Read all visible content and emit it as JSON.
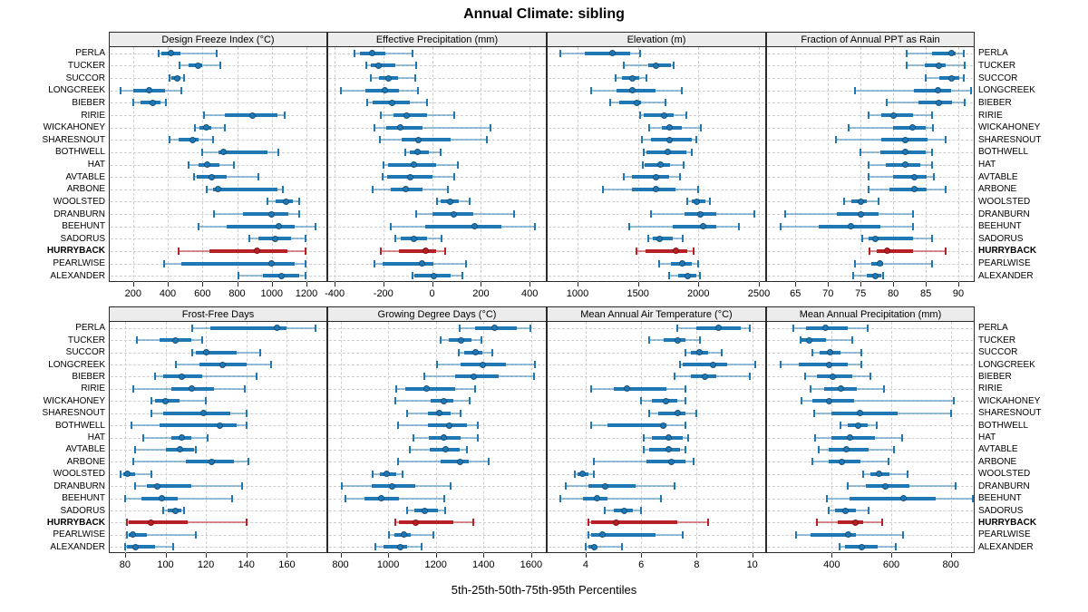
{
  "title": "Annual Climate: sibling",
  "axis_label": "5th-25th-50th-75th-95th Percentiles",
  "highlight_site": "HURRYBACK",
  "colors": {
    "series": "#1f77b4",
    "series_faint": "rgba(31,119,180,0.45)",
    "highlight": "#b82025",
    "highlight_faint": "rgba(184,32,37,0.5)",
    "strip_bg": "#ececec",
    "grid": "#cfcfcf",
    "border": "#2a2a2a"
  },
  "sites": [
    "PERLA",
    "TUCKER",
    "SUCCOR",
    "LONGCREEK",
    "BIEBER",
    "RIRIE",
    "WICKAHONEY",
    "SHARESNOUT",
    "BOTHWELL",
    "HAT",
    "AVTABLE",
    "ARBONE",
    "WOOLSTED",
    "DRANBURN",
    "BEEHUNT",
    "SADORUS",
    "HURRYBACK",
    "PEARLWISE",
    "ALEXANDER"
  ],
  "chart_data": {
    "type": "dotplot-interval",
    "note": "values per site are [5th,25th,50th,75th,95th] percentiles",
    "percentiles": [
      5,
      25,
      50,
      75,
      95
    ],
    "panels": [
      {
        "title": "Design Freeze Index (°C)",
        "grid_row": 1,
        "xlim": [
          60,
          1320
        ],
        "ticks": [
          200,
          400,
          600,
          800,
          1000,
          1200
        ],
        "values": [
          [
            345,
            365,
            420,
            475,
            680
          ],
          [
            465,
            520,
            575,
            600,
            705
          ],
          [
            410,
            420,
            455,
            475,
            495
          ],
          [
            130,
            200,
            290,
            385,
            480
          ],
          [
            200,
            245,
            315,
            360,
            390
          ],
          [
            610,
            730,
            890,
            1030,
            1075
          ],
          [
            555,
            585,
            620,
            650,
            730
          ],
          [
            410,
            460,
            545,
            575,
            660
          ],
          [
            600,
            690,
            720,
            975,
            1040
          ],
          [
            520,
            575,
            625,
            700,
            780
          ],
          [
            550,
            565,
            655,
            740,
            925
          ],
          [
            625,
            660,
            690,
            1030,
            1065
          ],
          [
            975,
            1020,
            1080,
            1120,
            1160
          ],
          [
            665,
            835,
            1000,
            1095,
            1160
          ],
          [
            575,
            740,
            1040,
            1130,
            1250
          ],
          [
            870,
            925,
            1020,
            1110,
            1195
          ],
          [
            460,
            640,
            915,
            1090,
            1195
          ],
          [
            380,
            480,
            1000,
            1130,
            1195
          ],
          [
            805,
            950,
            1055,
            1160,
            1195
          ]
        ]
      },
      {
        "title": "Effective Precipitation (mm)",
        "grid_row": 1,
        "xlim": [
          -430,
          470
        ],
        "ticks": [
          -400,
          -200,
          0,
          200,
          400
        ],
        "values": [
          [
            -320,
            -295,
            -245,
            -190,
            -80
          ],
          [
            -270,
            -250,
            -220,
            -150,
            -65
          ],
          [
            -250,
            -220,
            -180,
            -140,
            -70
          ],
          [
            -375,
            -275,
            -195,
            -135,
            -60
          ],
          [
            -265,
            -245,
            -165,
            -90,
            -20
          ],
          [
            -210,
            -160,
            -105,
            -20,
            90
          ],
          [
            -235,
            -190,
            -130,
            -40,
            240
          ],
          [
            -215,
            -125,
            -55,
            75,
            225
          ],
          [
            -110,
            -90,
            -60,
            -15,
            35
          ],
          [
            -200,
            -180,
            -75,
            15,
            105
          ],
          [
            -205,
            -185,
            -90,
            0,
            90
          ],
          [
            -245,
            -170,
            -110,
            -40,
            65
          ],
          [
            20,
            35,
            75,
            110,
            155
          ],
          [
            -65,
            0,
            90,
            170,
            335
          ],
          [
            -170,
            -30,
            175,
            285,
            420
          ],
          [
            -150,
            -130,
            -75,
            -20,
            40
          ],
          [
            -210,
            -135,
            -25,
            15,
            55
          ],
          [
            -235,
            -205,
            -40,
            5,
            140
          ],
          [
            -80,
            -75,
            5,
            75,
            125
          ]
        ]
      },
      {
        "title": "Elevation (m)",
        "grid_row": 1,
        "xlim": [
          745,
          2560
        ],
        "ticks": [
          1000,
          1500,
          2000,
          2500
        ],
        "values": [
          [
            860,
            1060,
            1290,
            1435,
            1520
          ],
          [
            1385,
            1585,
            1645,
            1775,
            1795
          ],
          [
            1315,
            1370,
            1450,
            1510,
            1570
          ],
          [
            1115,
            1325,
            1450,
            1645,
            1865
          ],
          [
            1270,
            1345,
            1490,
            1525,
            1730
          ],
          [
            1520,
            1550,
            1715,
            1795,
            1900
          ],
          [
            1595,
            1700,
            1760,
            1865,
            2020
          ],
          [
            1535,
            1610,
            1760,
            1945,
            1985
          ],
          [
            1550,
            1570,
            1745,
            1900,
            1945
          ],
          [
            1540,
            1555,
            1685,
            1765,
            1880
          ],
          [
            1385,
            1450,
            1645,
            1760,
            1850
          ],
          [
            1210,
            1450,
            1645,
            1810,
            2000
          ],
          [
            1910,
            1945,
            1985,
            2060,
            2095
          ],
          [
            1610,
            1885,
            2015,
            2150,
            2460
          ],
          [
            1430,
            1790,
            2035,
            2150,
            2335
          ],
          [
            1585,
            1625,
            1675,
            1790,
            1870
          ],
          [
            1490,
            1565,
            1810,
            1910,
            1960
          ],
          [
            1675,
            1775,
            1865,
            1945,
            2000
          ],
          [
            1760,
            1835,
            1910,
            1985,
            2015
          ]
        ]
      },
      {
        "title": "Fraction of Annual PPT as Rain",
        "grid_row": 1,
        "xlim": [
          60.5,
          92.5
        ],
        "ticks": [
          65,
          70,
          75,
          80,
          85,
          90
        ],
        "values": [
          [
            82,
            86,
            88.9,
            89.6,
            90.8
          ],
          [
            82,
            84.8,
            87,
            88.1,
            90.9
          ],
          [
            85,
            87.1,
            88.9,
            90.2,
            90.8
          ],
          [
            74.1,
            83.2,
            86.8,
            88.9,
            91.9
          ],
          [
            79,
            83.9,
            87,
            89,
            90.9
          ],
          [
            76.2,
            78.2,
            80,
            83,
            86
          ],
          [
            73.2,
            80,
            83,
            85,
            86.1
          ],
          [
            71.2,
            78.2,
            81.9,
            85.3,
            88.1
          ],
          [
            75,
            78,
            81.9,
            85,
            86
          ],
          [
            76.2,
            78.8,
            81.9,
            84.1,
            86
          ],
          [
            76.2,
            80,
            83.2,
            85.1,
            86.3
          ],
          [
            76.2,
            79.4,
            83.2,
            85.1,
            88.1
          ],
          [
            72.4,
            73.6,
            75,
            75.9,
            77.7
          ],
          [
            63.4,
            71.3,
            75,
            77.8,
            83
          ],
          [
            62.7,
            68.5,
            73.5,
            78,
            83
          ],
          [
            75.2,
            76.2,
            77.3,
            83.1,
            86
          ],
          [
            76.3,
            77.5,
            79,
            83.1,
            88.1
          ],
          [
            74.1,
            76.7,
            78,
            78.4,
            86
          ],
          [
            73.9,
            76,
            77.2,
            78.2,
            78.4
          ]
        ]
      },
      {
        "title": "Frost-Free Days",
        "grid_row": 2,
        "xlim": [
          72,
          180
        ],
        "ticks": [
          80,
          100,
          120,
          140,
          160
        ],
        "values": [
          [
            113,
            122,
            155,
            160,
            174
          ],
          [
            86,
            97,
            105,
            113,
            118
          ],
          [
            113,
            115,
            120,
            135,
            147
          ],
          [
            105,
            117,
            128,
            140,
            152
          ],
          [
            95,
            99,
            108,
            118,
            145
          ],
          [
            84,
            103,
            113,
            124,
            139
          ],
          [
            93,
            95,
            100,
            107,
            120
          ],
          [
            93,
            99,
            119,
            132,
            140
          ],
          [
            83,
            97,
            127,
            135,
            140
          ],
          [
            89,
            103,
            108,
            113,
            121
          ],
          [
            85,
            100,
            107,
            114,
            115
          ],
          [
            84,
            110,
            123,
            134,
            141
          ],
          [
            78,
            79,
            81,
            85,
            93
          ],
          [
            85,
            91,
            96,
            113,
            138
          ],
          [
            80,
            88,
            98,
            106,
            133
          ],
          [
            99,
            101,
            105,
            108,
            109
          ],
          [
            81,
            82,
            93,
            111,
            140
          ],
          [
            81,
            82,
            84,
            91,
            115
          ],
          [
            80,
            81,
            85,
            95,
            104
          ]
        ]
      },
      {
        "title": "Growing Degree Days (°C)",
        "grid_row": 2,
        "xlim": [
          745,
          1665
        ],
        "ticks": [
          800,
          1000,
          1200,
          1400,
          1600
        ],
        "values": [
          [
            1300,
            1365,
            1445,
            1540,
            1595
          ],
          [
            1220,
            1255,
            1305,
            1350,
            1390
          ],
          [
            1295,
            1320,
            1365,
            1395,
            1435
          ],
          [
            1205,
            1305,
            1395,
            1495,
            1615
          ],
          [
            1150,
            1280,
            1360,
            1465,
            1610
          ],
          [
            1035,
            1070,
            1160,
            1280,
            1365
          ],
          [
            1030,
            1180,
            1235,
            1275,
            1340
          ],
          [
            1080,
            1165,
            1215,
            1260,
            1305
          ],
          [
            1040,
            1165,
            1255,
            1330,
            1375
          ],
          [
            1105,
            1170,
            1235,
            1305,
            1375
          ],
          [
            1090,
            1175,
            1240,
            1300,
            1330
          ],
          [
            1040,
            1220,
            1300,
            1340,
            1420
          ],
          [
            935,
            965,
            995,
            1035,
            1060
          ],
          [
            805,
            930,
            1015,
            1115,
            1260
          ],
          [
            820,
            900,
            970,
            1045,
            1235
          ],
          [
            1080,
            1110,
            1155,
            1210,
            1240
          ],
          [
            1030,
            1045,
            1115,
            1275,
            1355
          ],
          [
            1005,
            1025,
            1065,
            1095,
            1190
          ],
          [
            945,
            980,
            1050,
            1080,
            1140
          ]
        ]
      },
      {
        "title": "Mean Annual Air Temperature (°C)",
        "grid_row": 2,
        "xlim": [
          2.6,
          10.5
        ],
        "ticks": [
          4,
          6,
          8,
          10
        ],
        "values": [
          [
            7.3,
            8.0,
            8.8,
            9.6,
            9.9
          ],
          [
            6.3,
            6.8,
            7.3,
            7.6,
            8.1
          ],
          [
            7.6,
            7.8,
            8.1,
            8.4,
            8.9
          ],
          [
            7.4,
            7.5,
            8.6,
            9.1,
            10.1
          ],
          [
            7.2,
            7.8,
            8.3,
            8.7,
            9.9
          ],
          [
            4.2,
            5.0,
            5.5,
            6.9,
            7.6
          ],
          [
            6.0,
            6.4,
            6.9,
            7.3,
            7.6
          ],
          [
            6.3,
            6.6,
            7.3,
            7.6,
            8.0
          ],
          [
            4.2,
            4.8,
            6.8,
            6.9,
            7.6
          ],
          [
            6.1,
            6.4,
            7.0,
            7.5,
            7.7
          ],
          [
            6.1,
            6.3,
            7.0,
            7.4,
            7.6
          ],
          [
            4.3,
            6.2,
            7.1,
            7.6,
            7.9
          ],
          [
            3.6,
            3.7,
            3.9,
            4.1,
            4.3
          ],
          [
            3.3,
            4.1,
            4.7,
            5.8,
            7.2
          ],
          [
            3.1,
            3.9,
            4.4,
            4.8,
            6.7
          ],
          [
            4.7,
            5.0,
            5.4,
            5.7,
            6.0
          ],
          [
            4.1,
            4.2,
            5.1,
            7.3,
            8.4
          ],
          [
            4.1,
            4.2,
            4.6,
            6.5,
            7.5
          ],
          [
            4.0,
            4.1,
            4.3,
            4.4,
            5.3
          ]
        ]
      },
      {
        "title": "Mean Annual Precipitation (mm)",
        "grid_row": 2,
        "xlim": [
          180,
          880
        ],
        "ticks": [
          400,
          600,
          800
        ],
        "values": [
          [
            270,
            315,
            380,
            455,
            520
          ],
          [
            295,
            300,
            325,
            380,
            470
          ],
          [
            335,
            360,
            395,
            430,
            500
          ],
          [
            230,
            290,
            390,
            455,
            500
          ],
          [
            310,
            350,
            405,
            470,
            530
          ],
          [
            330,
            375,
            430,
            485,
            575
          ],
          [
            300,
            335,
            390,
            475,
            810
          ],
          [
            340,
            400,
            495,
            620,
            800
          ],
          [
            430,
            455,
            490,
            520,
            550
          ],
          [
            345,
            400,
            460,
            545,
            635
          ],
          [
            355,
            390,
            450,
            525,
            610
          ],
          [
            335,
            390,
            435,
            495,
            590
          ],
          [
            505,
            530,
            560,
            595,
            655
          ],
          [
            455,
            515,
            580,
            660,
            815
          ],
          [
            385,
            460,
            640,
            750,
            875
          ],
          [
            390,
            410,
            445,
            480,
            525
          ],
          [
            350,
            420,
            480,
            505,
            570
          ],
          [
            280,
            330,
            455,
            480,
            640
          ],
          [
            425,
            445,
            500,
            555,
            615
          ]
        ]
      }
    ]
  }
}
